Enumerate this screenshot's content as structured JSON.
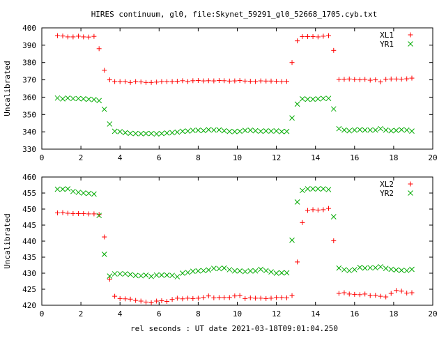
{
  "chart_data": {
    "title": "HIRES continuum, gl0, file:Skynet_59291_gl0_52668_1705.cyb.txt",
    "xlabel": "rel seconds : UT date 2021-03-18T09:01:04.250",
    "xlim": [
      0,
      20
    ],
    "xticks": [
      0,
      2,
      4,
      6,
      8,
      10,
      12,
      14,
      16,
      18,
      20
    ],
    "grid": false,
    "legend_position": "top-right",
    "panels": [
      {
        "type": "scatter",
        "ylabel": "Uncalibrated",
        "ylim": [
          330,
          400
        ],
        "yticks": [
          330,
          340,
          350,
          360,
          370,
          380,
          390,
          400
        ],
        "x": [
          0.8,
          1.07,
          1.33,
          1.6,
          1.87,
          2.13,
          2.4,
          2.67,
          2.93,
          3.2,
          3.47,
          3.73,
          4.0,
          4.27,
          4.53,
          4.8,
          5.07,
          5.33,
          5.6,
          5.87,
          6.13,
          6.4,
          6.67,
          6.93,
          7.2,
          7.47,
          7.73,
          8.0,
          8.27,
          8.53,
          8.8,
          9.07,
          9.33,
          9.6,
          9.87,
          10.13,
          10.4,
          10.67,
          10.93,
          11.2,
          11.47,
          11.73,
          12.0,
          12.27,
          12.53,
          12.8,
          13.07,
          13.33,
          13.6,
          13.87,
          14.13,
          14.4,
          14.67,
          14.93,
          15.2,
          15.47,
          15.73,
          16.0,
          16.27,
          16.53,
          16.8,
          17.07,
          17.33,
          17.6,
          17.87,
          18.13,
          18.4,
          18.67,
          18.93
        ],
        "series": [
          {
            "name": "XL1",
            "marker": "plus",
            "color": "#ff0000",
            "values": [
              395.5,
              395.3,
              394.8,
              394.8,
              395.2,
              394.8,
              394.7,
              395.1,
              388,
              375.5,
              370,
              369,
              369,
              369,
              368.5,
              369,
              368.8,
              368.5,
              368.5,
              368.7,
              369,
              369,
              369,
              369.2,
              369.5,
              369,
              369.5,
              369.6,
              369.4,
              369.5,
              369.4,
              369.6,
              369.5,
              369.3,
              369.4,
              369.6,
              369.3,
              369.2,
              369,
              369.4,
              369.3,
              369.3,
              369.2,
              369,
              369.1,
              380,
              392.5,
              395,
              395,
              395,
              394.8,
              395.2,
              395.5,
              387,
              370.2,
              370.3,
              370.5,
              370.2,
              370,
              370.3,
              369.8,
              370,
              368.8,
              370.3,
              370.5,
              370.5,
              370.4,
              370.6,
              371
            ]
          },
          {
            "name": "YR1",
            "marker": "cross",
            "color": "#00aa00",
            "values": [
              359.5,
              359,
              359.5,
              359.2,
              359.2,
              359,
              358.8,
              358.6,
              358,
              353,
              344.5,
              340.3,
              340.1,
              339.5,
              339.1,
              339,
              338.9,
              339,
              339,
              338.8,
              339,
              339.3,
              339.5,
              339.8,
              340.3,
              340.4,
              340.8,
              340.9,
              340.7,
              341.2,
              341,
              341.1,
              340.6,
              340.2,
              340.1,
              340.3,
              340.8,
              340.9,
              340.6,
              340.3,
              340.5,
              340.4,
              340.5,
              340.1,
              340.2,
              348,
              356,
              359,
              358.8,
              358.8,
              359,
              359.3,
              359.3,
              353.2,
              341.8,
              341,
              340.6,
              341,
              341.2,
              341,
              341,
              341,
              341.8,
              341,
              340.6,
              340.8,
              341.2,
              341,
              340.4
            ]
          }
        ]
      },
      {
        "type": "scatter",
        "ylabel": "Uncalibrated",
        "ylim": [
          420,
          460
        ],
        "yticks": [
          420,
          425,
          430,
          435,
          440,
          445,
          450,
          455,
          460
        ],
        "x": [
          0.8,
          1.07,
          1.33,
          1.6,
          1.87,
          2.13,
          2.4,
          2.67,
          2.93,
          3.2,
          3.47,
          3.73,
          4.0,
          4.27,
          4.53,
          4.8,
          5.07,
          5.33,
          5.6,
          5.87,
          6.13,
          6.4,
          6.67,
          6.93,
          7.2,
          7.47,
          7.73,
          8.0,
          8.27,
          8.53,
          8.8,
          9.07,
          9.33,
          9.6,
          9.87,
          10.13,
          10.4,
          10.67,
          10.93,
          11.2,
          11.47,
          11.73,
          12.0,
          12.27,
          12.53,
          12.8,
          13.07,
          13.33,
          13.6,
          13.87,
          14.13,
          14.4,
          14.67,
          14.93,
          15.2,
          15.47,
          15.73,
          16.0,
          16.27,
          16.53,
          16.8,
          17.07,
          17.33,
          17.6,
          17.87,
          18.13,
          18.4,
          18.67,
          18.93
        ],
        "series": [
          {
            "name": "XL2",
            "marker": "plus",
            "color": "#ff0000",
            "values": [
              448.8,
              448.9,
              448.7,
              448.6,
              448.6,
              448.6,
              448.5,
              448.5,
              448.3,
              441.3,
              428.1,
              422.8,
              422.1,
              422,
              421.9,
              421.5,
              421.3,
              421,
              420.8,
              421.3,
              421.4,
              421.2,
              421.8,
              422.2,
              422,
              422.2,
              422.1,
              422.2,
              422.4,
              422.9,
              422.3,
              422.4,
              422.4,
              422.4,
              422.9,
              423,
              422.1,
              422.3,
              422.2,
              422.2,
              422.1,
              422.2,
              422.4,
              422.4,
              422.3,
              423,
              433.5,
              445.8,
              449.6,
              449.8,
              449.7,
              449.8,
              450.2,
              440.1,
              423.7,
              423.9,
              423.5,
              423.4,
              423.3,
              423.5,
              423,
              423.1,
              422.8,
              422.6,
              423.7,
              424.6,
              424.4,
              423.8,
              423.9
            ]
          },
          {
            "name": "YR2",
            "marker": "cross",
            "color": "#00aa00",
            "values": [
              456.2,
              456.2,
              456.3,
              455.5,
              455.2,
              455,
              454.9,
              454.7,
              448,
              435.9,
              429.1,
              429.8,
              429.8,
              429.8,
              429.6,
              429.3,
              429.2,
              429.4,
              429,
              429.4,
              429.4,
              429.4,
              429.3,
              428.9,
              430,
              430.2,
              430.6,
              430.7,
              430.8,
              431,
              431.5,
              431.4,
              431.6,
              431.1,
              430.7,
              430.7,
              430.5,
              430.7,
              430.7,
              431.2,
              430.8,
              430.4,
              430,
              430.1,
              430.1,
              440.3,
              452.2,
              455.8,
              456.3,
              456.3,
              456.3,
              456.3,
              456.1,
              447.6,
              431.6,
              431.1,
              430.8,
              431.1,
              431.8,
              431.6,
              431.7,
              431.7,
              432,
              431.5,
              431.2,
              431,
              430.9,
              430.8,
              431.2
            ]
          }
        ]
      }
    ]
  }
}
